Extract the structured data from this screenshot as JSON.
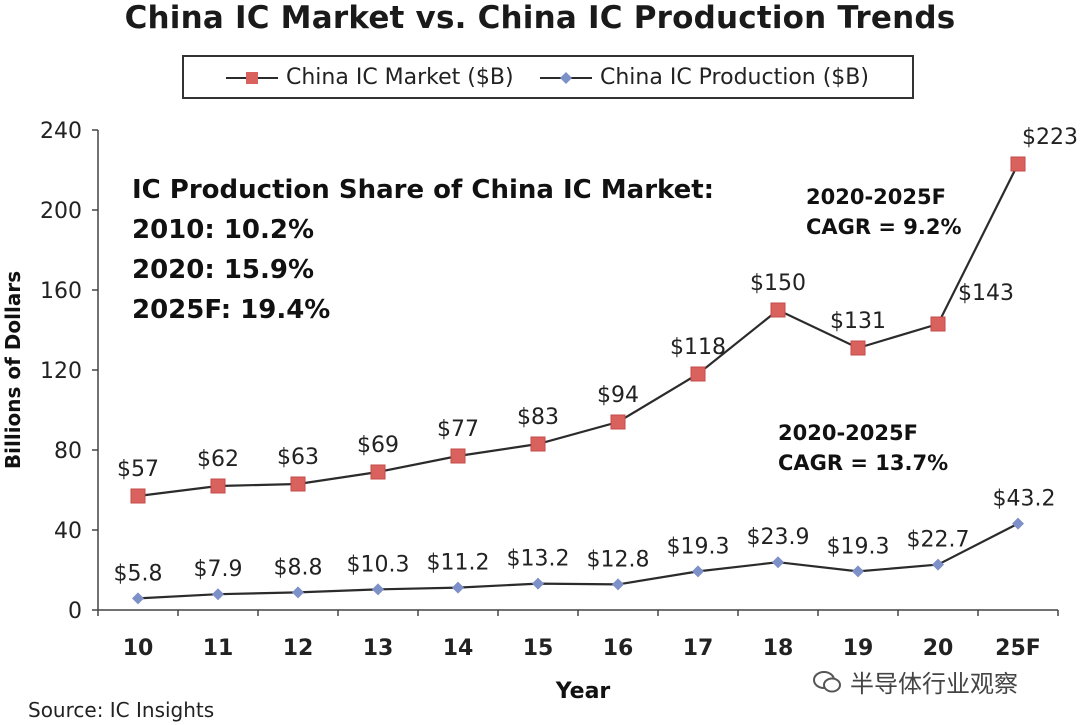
{
  "title": "China IC Market vs. China IC Production Trends",
  "legend": {
    "market": "China IC Market ($B)",
    "production": "China IC Production ($B)"
  },
  "annotations": {
    "share_title": "IC Production Share of China IC Market:",
    "share_2010": "2010: 10.2%",
    "share_2020": "2020: 15.9%",
    "share_2025": "2025F: 19.4%",
    "market_cagr_period": "2020-2025F",
    "market_cagr": "CAGR = 9.2%",
    "production_cagr_period": "2020-2025F",
    "production_cagr": "CAGR = 13.7%"
  },
  "source": "Source: IC Insights",
  "watermark": "半导体行业观察",
  "colors": {
    "market": "#d9625f",
    "production": "#7d90c8",
    "line": "#2b2b2b"
  },
  "chart_data": {
    "type": "line",
    "xlabel": "Year",
    "ylabel": "Billions of Dollars",
    "ylim": [
      0,
      240
    ],
    "yticks": [
      0,
      40,
      80,
      120,
      160,
      200,
      240
    ],
    "grid": false,
    "legend_position": "top",
    "categories": [
      "10",
      "11",
      "12",
      "13",
      "14",
      "15",
      "16",
      "17",
      "18",
      "19",
      "20",
      "25F"
    ],
    "series": [
      {
        "name": "China IC Market ($B)",
        "values": [
          57,
          62,
          63,
          69,
          77,
          83,
          94,
          118,
          150,
          131,
          143,
          223
        ],
        "labels": [
          "$57",
          "$62",
          "$63",
          "$69",
          "$77",
          "$83",
          "$94",
          "$118",
          "$150",
          "$131",
          "$143",
          "$223"
        ]
      },
      {
        "name": "China IC Production ($B)",
        "values": [
          5.8,
          7.9,
          8.8,
          10.3,
          11.2,
          13.2,
          12.8,
          19.3,
          23.9,
          19.3,
          22.7,
          43.2
        ],
        "labels": [
          "$5.8",
          "$7.9",
          "$8.8",
          "$10.3",
          "$11.2",
          "$13.2",
          "$12.8",
          "$19.3",
          "$23.9",
          "$19.3",
          "$22.7",
          "$43.2"
        ]
      }
    ]
  }
}
